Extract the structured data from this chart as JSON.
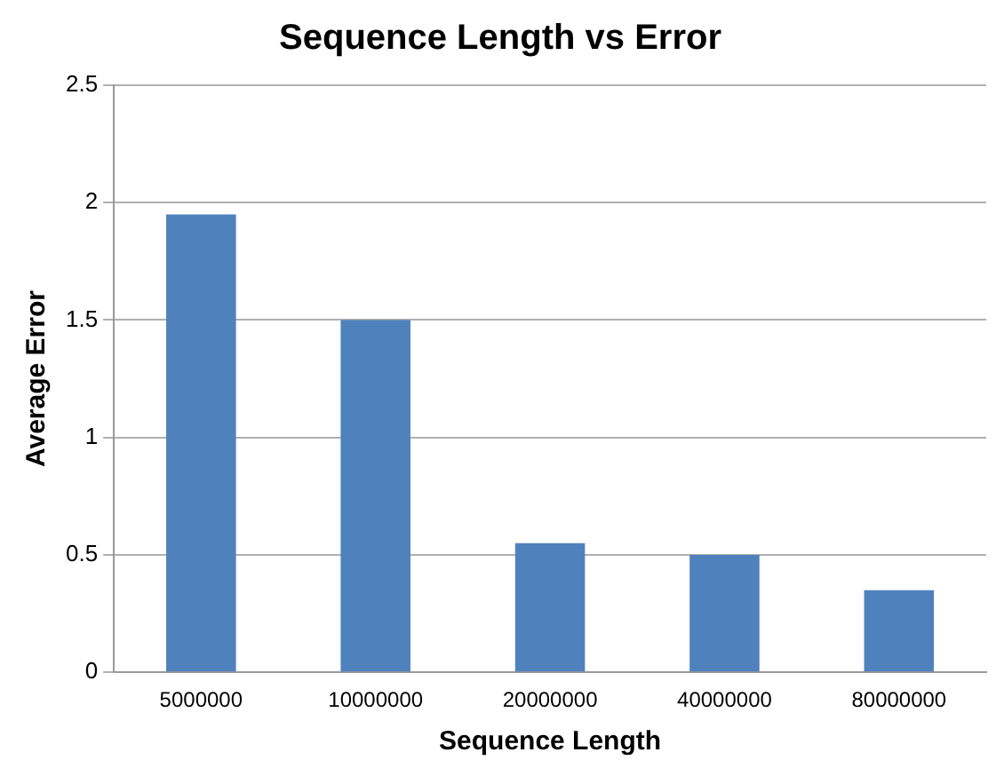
{
  "chart_data": {
    "type": "bar",
    "title": "Sequence Length vs Error",
    "xlabel": "Sequence Length",
    "ylabel": "Average Error",
    "categories": [
      "5000000",
      "10000000",
      "20000000",
      "40000000",
      "80000000"
    ],
    "values": [
      1.95,
      1.5,
      0.55,
      0.5,
      0.35
    ],
    "color": "#4f81bd",
    "ylim": [
      0,
      2.5
    ],
    "yticks": [
      0,
      0.5,
      1,
      1.5,
      2,
      2.5
    ],
    "grid": "y",
    "legend": false
  }
}
